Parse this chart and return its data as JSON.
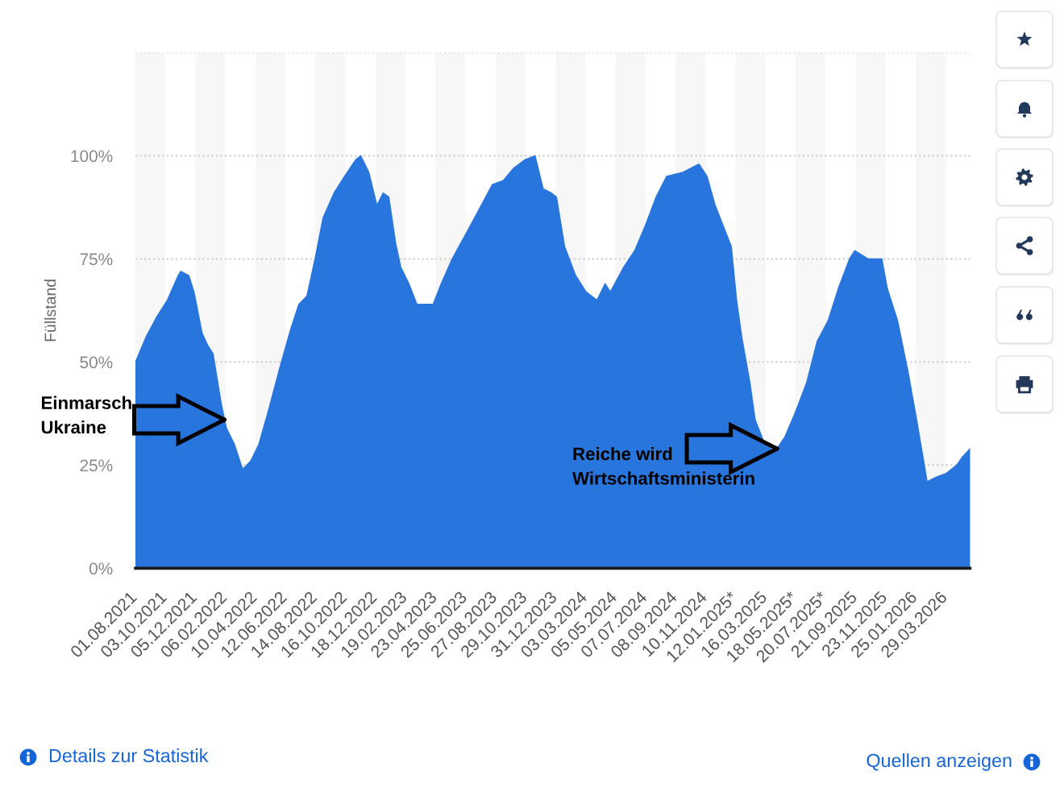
{
  "chart_data": {
    "type": "area",
    "ylabel": "Füllstand",
    "color": "#2876dd",
    "x": [
      "2021-08-01",
      "2021-08-23",
      "2021-09-15",
      "2021-10-07",
      "2021-10-30",
      "2021-11-04",
      "2021-11-21",
      "2021-12-02",
      "2021-12-19",
      "2021-12-31",
      "2022-01-11",
      "2022-01-28",
      "2022-02-08",
      "2022-02-25",
      "2022-03-14",
      "2022-03-31",
      "2022-04-17",
      "2022-05-09",
      "2022-06-01",
      "2022-06-23",
      "2022-07-10",
      "2022-07-27",
      "2022-08-13",
      "2022-08-30",
      "2022-09-22",
      "2022-10-14",
      "2022-11-06",
      "2022-11-17",
      "2022-12-04",
      "2022-12-21",
      "2023-01-03",
      "2023-01-15",
      "2023-01-29",
      "2023-02-09",
      "2023-02-26",
      "2023-03-15",
      "2023-04-01",
      "2023-04-18",
      "2023-05-05",
      "2023-05-28",
      "2023-06-30",
      "2023-07-28",
      "2023-08-20",
      "2023-09-12",
      "2023-10-04",
      "2023-10-27",
      "2023-11-18",
      "2023-12-05",
      "2023-12-22",
      "2024-01-02",
      "2024-01-19",
      "2024-02-11",
      "2024-03-04",
      "2024-03-27",
      "2024-04-13",
      "2024-04-24",
      "2024-05-22",
      "2024-06-14",
      "2024-07-06",
      "2024-07-29",
      "2024-08-20",
      "2024-09-23",
      "2024-10-27",
      "2024-11-13",
      "2024-11-30",
      "2024-12-17",
      "2025-01-03",
      "2025-01-14",
      "2025-01-25",
      "2025-02-11",
      "2025-02-22",
      "2025-03-11",
      "2025-04-03",
      "2025-04-26",
      "2025-05-18",
      "2025-06-10",
      "2025-07-02",
      "2025-07-25",
      "2025-08-16",
      "2025-09-08",
      "2025-09-19",
      "2025-10-17",
      "2025-11-15",
      "2025-11-26",
      "2025-12-18",
      "2026-01-10",
      "2026-01-27",
      "2026-02-18",
      "2026-03-07",
      "2026-03-30",
      "2026-04-21",
      "2026-05-03",
      "2026-05-19"
    ],
    "values": [
      50,
      56,
      61,
      65,
      71,
      72,
      71,
      67,
      57,
      54,
      52,
      40,
      34,
      30,
      24,
      26,
      30,
      39,
      49,
      58,
      64,
      66,
      75,
      85,
      91,
      95,
      99,
      100,
      96,
      88,
      91,
      90,
      79,
      73,
      69,
      64,
      64,
      64,
      69,
      75,
      82,
      88,
      93,
      94,
      97,
      99,
      100,
      92,
      91,
      90,
      78,
      71,
      67,
      65,
      69,
      67,
      73,
      77,
      83,
      90,
      95,
      96,
      98,
      95,
      88,
      83,
      78,
      65,
      56,
      45,
      36,
      31,
      28,
      32,
      38,
      45,
      55,
      60,
      68,
      75,
      77,
      75,
      75,
      68,
      60,
      47,
      36,
      21,
      22,
      23,
      25,
      27,
      29
    ],
    "xlim": [
      "2021-08-01",
      "2026-05-19"
    ],
    "xticks": [
      {
        "value": "2021-08-01",
        "label": "01.08.2021"
      },
      {
        "value": "2021-10-03",
        "label": "03.10.2021"
      },
      {
        "value": "2021-12-05",
        "label": "05.12.2021"
      },
      {
        "value": "2022-02-06",
        "label": "06.02.2022"
      },
      {
        "value": "2022-04-10",
        "label": "10.04.2022"
      },
      {
        "value": "2022-06-12",
        "label": "12.06.2022"
      },
      {
        "value": "2022-08-14",
        "label": "14.08.2022"
      },
      {
        "value": "2022-10-16",
        "label": "16.10.2022"
      },
      {
        "value": "2022-12-18",
        "label": "18.12.2022"
      },
      {
        "value": "2023-02-19",
        "label": "19.02.2023"
      },
      {
        "value": "2023-04-23",
        "label": "23.04.2023"
      },
      {
        "value": "2023-06-25",
        "label": "25.06.2023"
      },
      {
        "value": "2023-08-27",
        "label": "27.08.2023"
      },
      {
        "value": "2023-10-29",
        "label": "29.10.2023"
      },
      {
        "value": "2023-12-31",
        "label": "31.12.2023"
      },
      {
        "value": "2024-03-03",
        "label": "03.03.2024"
      },
      {
        "value": "2024-05-05",
        "label": "05.05.2024"
      },
      {
        "value": "2024-07-07",
        "label": "07.07.2024"
      },
      {
        "value": "2024-09-08",
        "label": "08.09.2024"
      },
      {
        "value": "2024-11-10",
        "label": "10.11.2024"
      },
      {
        "value": "2025-01-12",
        "label": "12.01.2025*"
      },
      {
        "value": "2025-03-16",
        "label": "16.03.2025"
      },
      {
        "value": "2025-05-18",
        "label": "18.05.2025*"
      },
      {
        "value": "2025-07-20",
        "label": "20.07.2025*"
      },
      {
        "value": "2025-09-21",
        "label": "21.09.2025"
      },
      {
        "value": "2025-11-23",
        "label": "23.11.2025"
      },
      {
        "value": "2026-01-25",
        "label": "25.01.2026"
      },
      {
        "value": "2026-03-29",
        "label": "29.03.2026"
      }
    ],
    "ylim": [
      0,
      125
    ],
    "yticks": [
      {
        "value": 0,
        "label": "0%"
      },
      {
        "value": 25,
        "label": "25%"
      },
      {
        "value": 50,
        "label": "50%"
      },
      {
        "value": 75,
        "label": "75%"
      },
      {
        "value": 100,
        "label": "100%"
      },
      {
        "value": 125,
        "label": null
      }
    ],
    "grid": "y",
    "bands": [
      {
        "axis": "x",
        "from": "2021-08-01",
        "to": "2021-10-03",
        "color": "#f7f7f7"
      },
      {
        "axis": "x",
        "from": "2021-12-05",
        "to": "2022-02-06",
        "color": "#f7f7f7"
      },
      {
        "axis": "x",
        "from": "2022-04-10",
        "to": "2022-06-12",
        "color": "#f7f7f7"
      },
      {
        "axis": "x",
        "from": "2022-08-14",
        "to": "2022-10-16",
        "color": "#f7f7f7"
      },
      {
        "axis": "x",
        "from": "2022-12-18",
        "to": "2023-02-19",
        "color": "#f7f7f7"
      },
      {
        "axis": "x",
        "from": "2023-04-23",
        "to": "2023-06-25",
        "color": "#f7f7f7"
      },
      {
        "axis": "x",
        "from": "2023-08-27",
        "to": "2023-10-29",
        "color": "#f7f7f7"
      },
      {
        "axis": "x",
        "from": "2023-12-31",
        "to": "2024-03-03",
        "color": "#f7f7f7"
      },
      {
        "axis": "x",
        "from": "2024-05-05",
        "to": "2024-07-07",
        "color": "#f7f7f7"
      },
      {
        "axis": "x",
        "from": "2024-09-08",
        "to": "2024-11-10",
        "color": "#f7f7f7"
      },
      {
        "axis": "x",
        "from": "2025-01-12",
        "to": "2025-03-16",
        "color": "#f7f7f7"
      },
      {
        "axis": "x",
        "from": "2025-05-18",
        "to": "2025-07-20",
        "color": "#f7f7f7"
      },
      {
        "axis": "x",
        "from": "2025-09-21",
        "to": "2025-11-23",
        "color": "#f7f7f7"
      },
      {
        "axis": "x",
        "from": "2026-01-25",
        "to": "2026-03-29",
        "color": "#f7f7f7"
      }
    ],
    "annotations": [
      {
        "text": "Einmarsch\nUkraine",
        "x": "2022-02-04",
        "y": 36
      },
      {
        "text": "Reiche wird\nWirtschaftsministerin",
        "x": "2025-04-09",
        "y": 29
      },
      "Details zur Statistik",
      "Quellen anzeigen"
    ]
  }
}
